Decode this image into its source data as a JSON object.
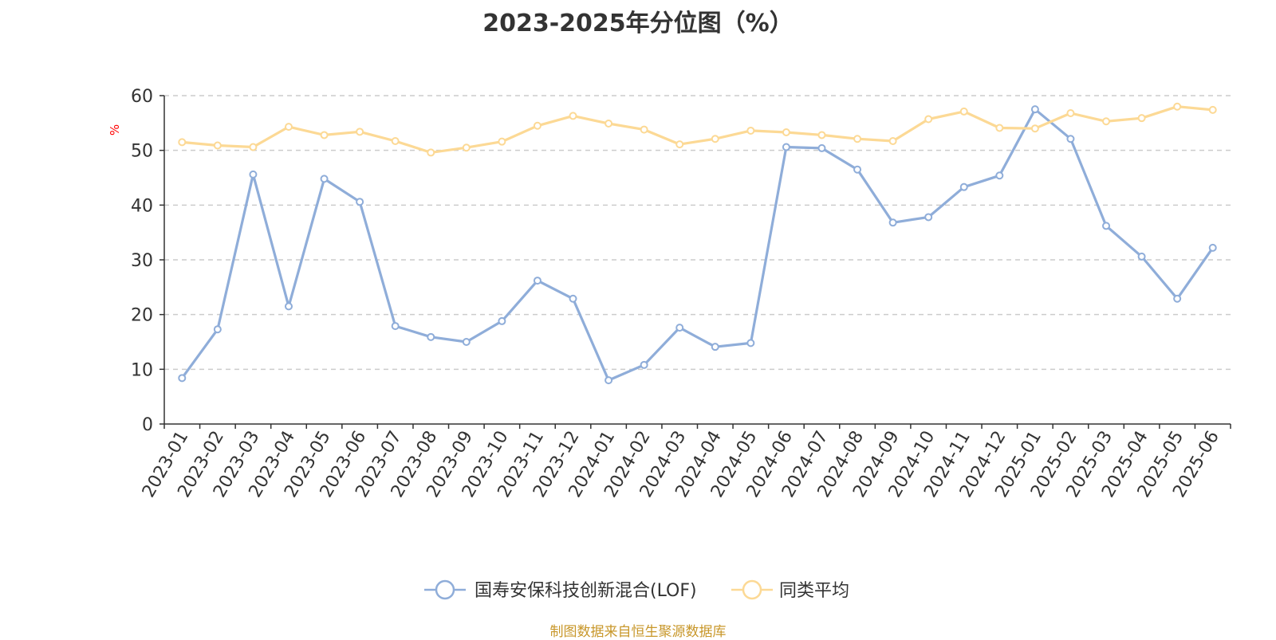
{
  "chart_data": {
    "type": "line",
    "title": "2023-2025年分位图（%）",
    "ylabel": "%",
    "xlabel": "",
    "ylim": [
      0,
      60
    ],
    "yticks": [
      0,
      10,
      20,
      30,
      40,
      50,
      60
    ],
    "grid": true,
    "legend_position": "bottom-center",
    "categories": [
      "2023-01",
      "2023-02",
      "2023-03",
      "2023-04",
      "2023-05",
      "2023-06",
      "2023-07",
      "2023-08",
      "2023-09",
      "2023-10",
      "2023-11",
      "2023-12",
      "2024-01",
      "2024-02",
      "2024-03",
      "2024-04",
      "2024-05",
      "2024-06",
      "2024-07",
      "2024-08",
      "2024-09",
      "2024-10",
      "2024-11",
      "2024-12",
      "2025-01",
      "2025-02",
      "2025-03",
      "2025-04",
      "2025-05",
      "2025-06"
    ],
    "series": [
      {
        "name": "国寿安保科技创新混合(LOF)",
        "color": "#8fadd9",
        "values": [
          8.4,
          17.3,
          45.6,
          21.5,
          44.8,
          40.6,
          17.9,
          15.9,
          15.0,
          18.8,
          26.2,
          22.9,
          8.0,
          10.8,
          17.6,
          14.1,
          14.8,
          50.6,
          50.4,
          46.5,
          36.8,
          37.8,
          43.3,
          45.4,
          57.5,
          52.1,
          36.2,
          30.6,
          22.9,
          32.2
        ]
      },
      {
        "name": "同类平均",
        "color": "#fcd995",
        "values": [
          51.5,
          50.9,
          50.6,
          54.3,
          52.8,
          53.4,
          51.7,
          49.6,
          50.5,
          51.6,
          54.5,
          56.3,
          54.9,
          53.8,
          51.1,
          52.1,
          53.6,
          53.3,
          52.8,
          52.1,
          51.7,
          55.7,
          57.1,
          54.1,
          54.0,
          56.8,
          55.3,
          55.9,
          58.0,
          57.4
        ]
      }
    ],
    "source": "制图数据来自恒生聚源数据库"
  }
}
